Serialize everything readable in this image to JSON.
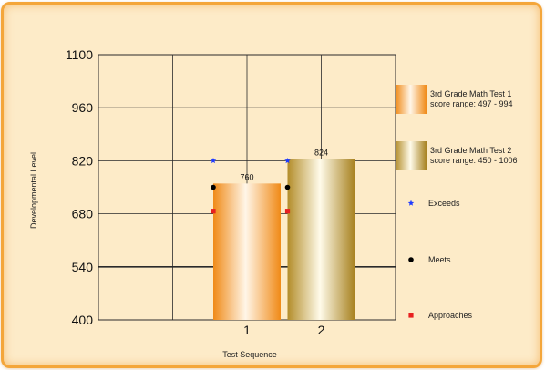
{
  "chart_data": {
    "type": "bar",
    "title": "",
    "xlabel": "Test Sequence",
    "ylabel": "Developmental Level",
    "ylim": [
      400,
      1100
    ],
    "yticks": [
      400,
      540,
      680,
      820,
      960,
      1100
    ],
    "xlim": [
      -1,
      3
    ],
    "categories": [
      "1",
      "2"
    ],
    "grid": true,
    "series": [
      {
        "name": "3rd Grade Math Test 1",
        "detail": "score range: 497 - 994",
        "x": 1,
        "value": 760,
        "value_label": "760",
        "color": "#f08c1e"
      },
      {
        "name": "3rd Grade Math Test 2",
        "detail": "score range: 450 - 1006",
        "x": 2,
        "value": 824,
        "value_label": "824",
        "color": "#b8962e"
      }
    ],
    "markers": [
      {
        "name": "Exceeds",
        "color": "#1f3bff",
        "shape": "star",
        "values": [
          820,
          820
        ]
      },
      {
        "name": "Meets",
        "color": "#000000",
        "shape": "circle",
        "values": [
          750,
          750
        ]
      },
      {
        "name": "Approaches",
        "color": "#e82020",
        "shape": "square",
        "values": [
          687,
          687
        ]
      }
    ],
    "legend_position": "right"
  }
}
